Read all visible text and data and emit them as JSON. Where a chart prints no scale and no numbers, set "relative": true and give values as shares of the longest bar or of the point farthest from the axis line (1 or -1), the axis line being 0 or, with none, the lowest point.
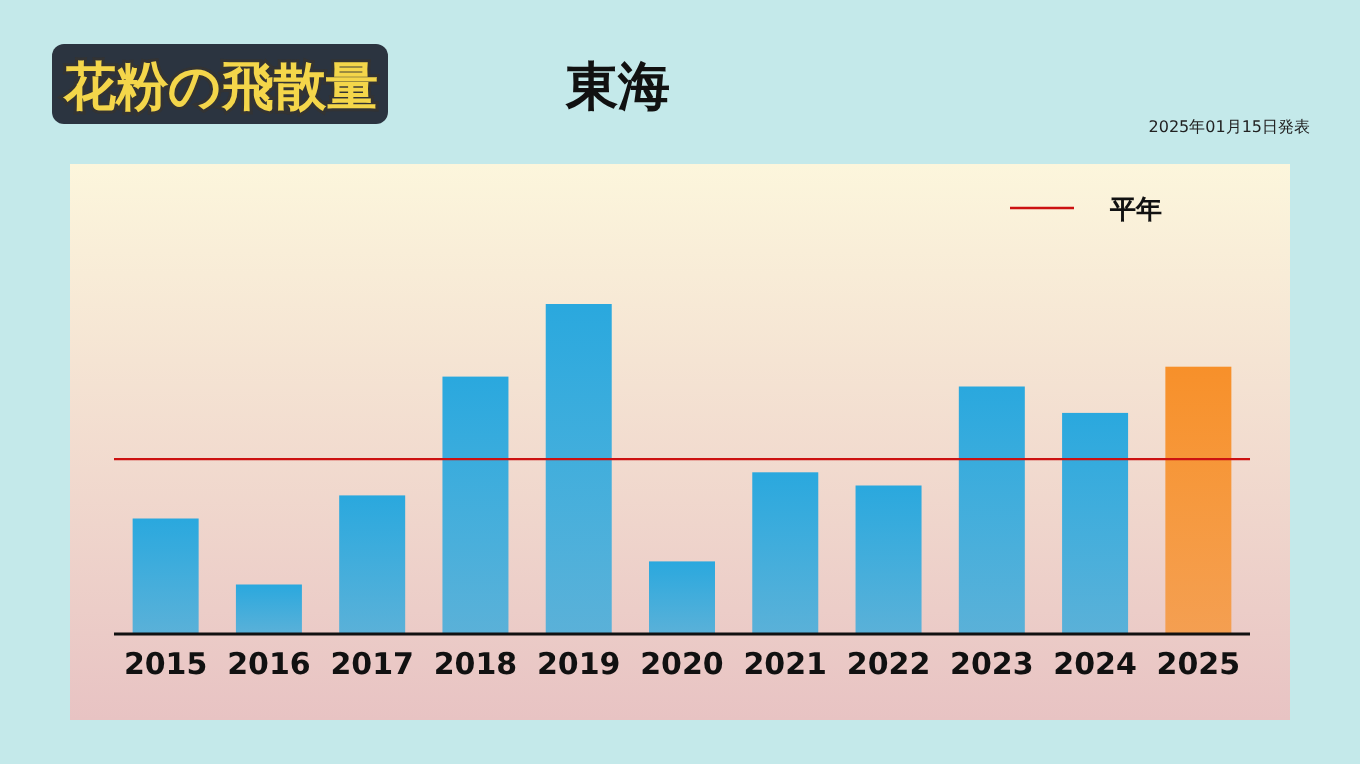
{
  "chart_data": {
    "type": "bar",
    "title": "花粉の飛散量",
    "subtitle": "東海",
    "relative": true,
    "categories": [
      "2015",
      "2016",
      "2017",
      "2018",
      "2019",
      "2020",
      "2021",
      "2022",
      "2023",
      "2024",
      "2025"
    ],
    "values": [
      0.35,
      0.15,
      0.42,
      0.78,
      1,
      0.22,
      0.49,
      0.45,
      0.75,
      0.67,
      0.81
    ],
    "colors": [
      "#2aa8de",
      "#2aa8de",
      "#2aa8de",
      "#2aa8de",
      "#2aa8de",
      "#2aa8de",
      "#2aa8de",
      "#2aa8de",
      "#2aa8de",
      "#2aa8de",
      "#f7902a"
    ],
    "ref_lines": [
      {
        "axis": "y",
        "value": 0.53,
        "label": "平年",
        "color": "#cc1111"
      }
    ],
    "legend": "top right",
    "annotations": [
      "2025年01月15日発表"
    ]
  }
}
